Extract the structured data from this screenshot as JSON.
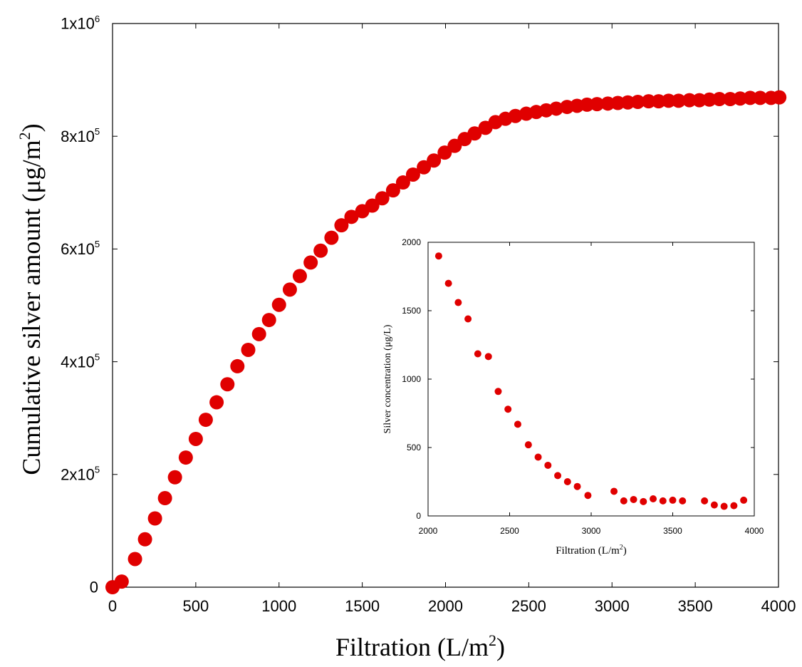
{
  "chart_data": [
    {
      "type": "scatter",
      "name": "main",
      "title": "",
      "xlabel": "Filtration (L/m",
      "xlabel_sup": "2",
      "xlabel_close": ")",
      "ylabel": "Cumulative silver amount (μg/m",
      "ylabel_sup": "2",
      "ylabel_close": ")",
      "xlim": [
        0,
        4000
      ],
      "ylim": [
        0,
        1000000
      ],
      "grid": false,
      "marker_color": "#e00000",
      "x_ticks": [
        {
          "value": 0,
          "label": "0"
        },
        {
          "value": 500,
          "label": "500"
        },
        {
          "value": 1000,
          "label": "1000"
        },
        {
          "value": 1500,
          "label": "1500"
        },
        {
          "value": 2000,
          "label": "2000"
        },
        {
          "value": 2500,
          "label": "2500"
        },
        {
          "value": 3000,
          "label": "3000"
        },
        {
          "value": 3500,
          "label": "3500"
        },
        {
          "value": 4000,
          "label": "4000"
        }
      ],
      "y_ticks": [
        {
          "value": 0,
          "label": "0",
          "sup": ""
        },
        {
          "value": 200000,
          "label": "2x10",
          "sup": "5"
        },
        {
          "value": 400000,
          "label": "4x10",
          "sup": "5"
        },
        {
          "value": 600000,
          "label": "6x10",
          "sup": "5"
        },
        {
          "value": 800000,
          "label": "8x10",
          "sup": "5"
        },
        {
          "value": 1000000,
          "label": "1x10",
          "sup": "6"
        }
      ],
      "x": [
        0,
        55,
        135,
        195,
        255,
        315,
        375,
        440,
        500,
        560,
        625,
        690,
        750,
        815,
        880,
        940,
        1000,
        1065,
        1125,
        1190,
        1250,
        1315,
        1375,
        1435,
        1500,
        1560,
        1620,
        1685,
        1745,
        1805,
        1870,
        1930,
        1995,
        2055,
        2115,
        2175,
        2240,
        2300,
        2360,
        2420,
        2485,
        2545,
        2605,
        2665,
        2730,
        2790,
        2850,
        2910,
        2975,
        3035,
        3095,
        3155,
        3220,
        3280,
        3340,
        3400,
        3465,
        3525,
        3585,
        3645,
        3710,
        3770,
        3830,
        3890,
        3955,
        4005
      ],
      "y": [
        0,
        10000,
        50000,
        85000,
        122000,
        158000,
        195000,
        230000,
        263000,
        297000,
        328000,
        360000,
        392000,
        421000,
        449000,
        474000,
        501000,
        528000,
        552000,
        576000,
        597000,
        620000,
        642000,
        657000,
        667000,
        677000,
        690000,
        704000,
        718000,
        732000,
        745000,
        757000,
        771000,
        783000,
        795000,
        805000,
        815000,
        825000,
        831000,
        836000,
        840000,
        843000,
        846000,
        849000,
        852000,
        854000,
        856000,
        857000,
        858000,
        859000,
        860000,
        861000,
        862000,
        862000,
        863000,
        863000,
        864000,
        864000,
        865000,
        866000,
        866000,
        867000,
        868000,
        868000,
        868000,
        869000
      ]
    },
    {
      "type": "scatter",
      "name": "inset",
      "title": "",
      "xlabel": "Filtration (L/m",
      "xlabel_sup": "2",
      "xlabel_close": ")",
      "ylabel": "Silver concentration (μg/L)",
      "xlim": [
        2000,
        4000
      ],
      "ylim": [
        0,
        2000
      ],
      "grid": false,
      "marker_color": "#e00000",
      "x_ticks": [
        {
          "value": 2000,
          "label": "2000"
        },
        {
          "value": 2500,
          "label": "2500"
        },
        {
          "value": 3000,
          "label": "3000"
        },
        {
          "value": 3500,
          "label": "3500"
        },
        {
          "value": 4000,
          "label": "4000"
        }
      ],
      "y_ticks": [
        {
          "value": 0,
          "label": "0"
        },
        {
          "value": 500,
          "label": "500"
        },
        {
          "value": 1000,
          "label": "1000"
        },
        {
          "value": 1500,
          "label": "1500"
        },
        {
          "value": 2000,
          "label": "2000"
        }
      ],
      "x": [
        2065,
        2125,
        2185,
        2245,
        2305,
        2370,
        2430,
        2490,
        2550,
        2615,
        2675,
        2735,
        2795,
        2855,
        2915,
        2980,
        3140,
        3200,
        3260,
        3320,
        3380,
        3440,
        3500,
        3560,
        3695,
        3755,
        3815,
        3875,
        3935
      ],
      "y": [
        1900,
        1700,
        1560,
        1440,
        1185,
        1165,
        910,
        780,
        670,
        520,
        430,
        370,
        295,
        250,
        215,
        150,
        180,
        110,
        120,
        105,
        125,
        110,
        115,
        110,
        110,
        80,
        70,
        75,
        115
      ]
    }
  ]
}
